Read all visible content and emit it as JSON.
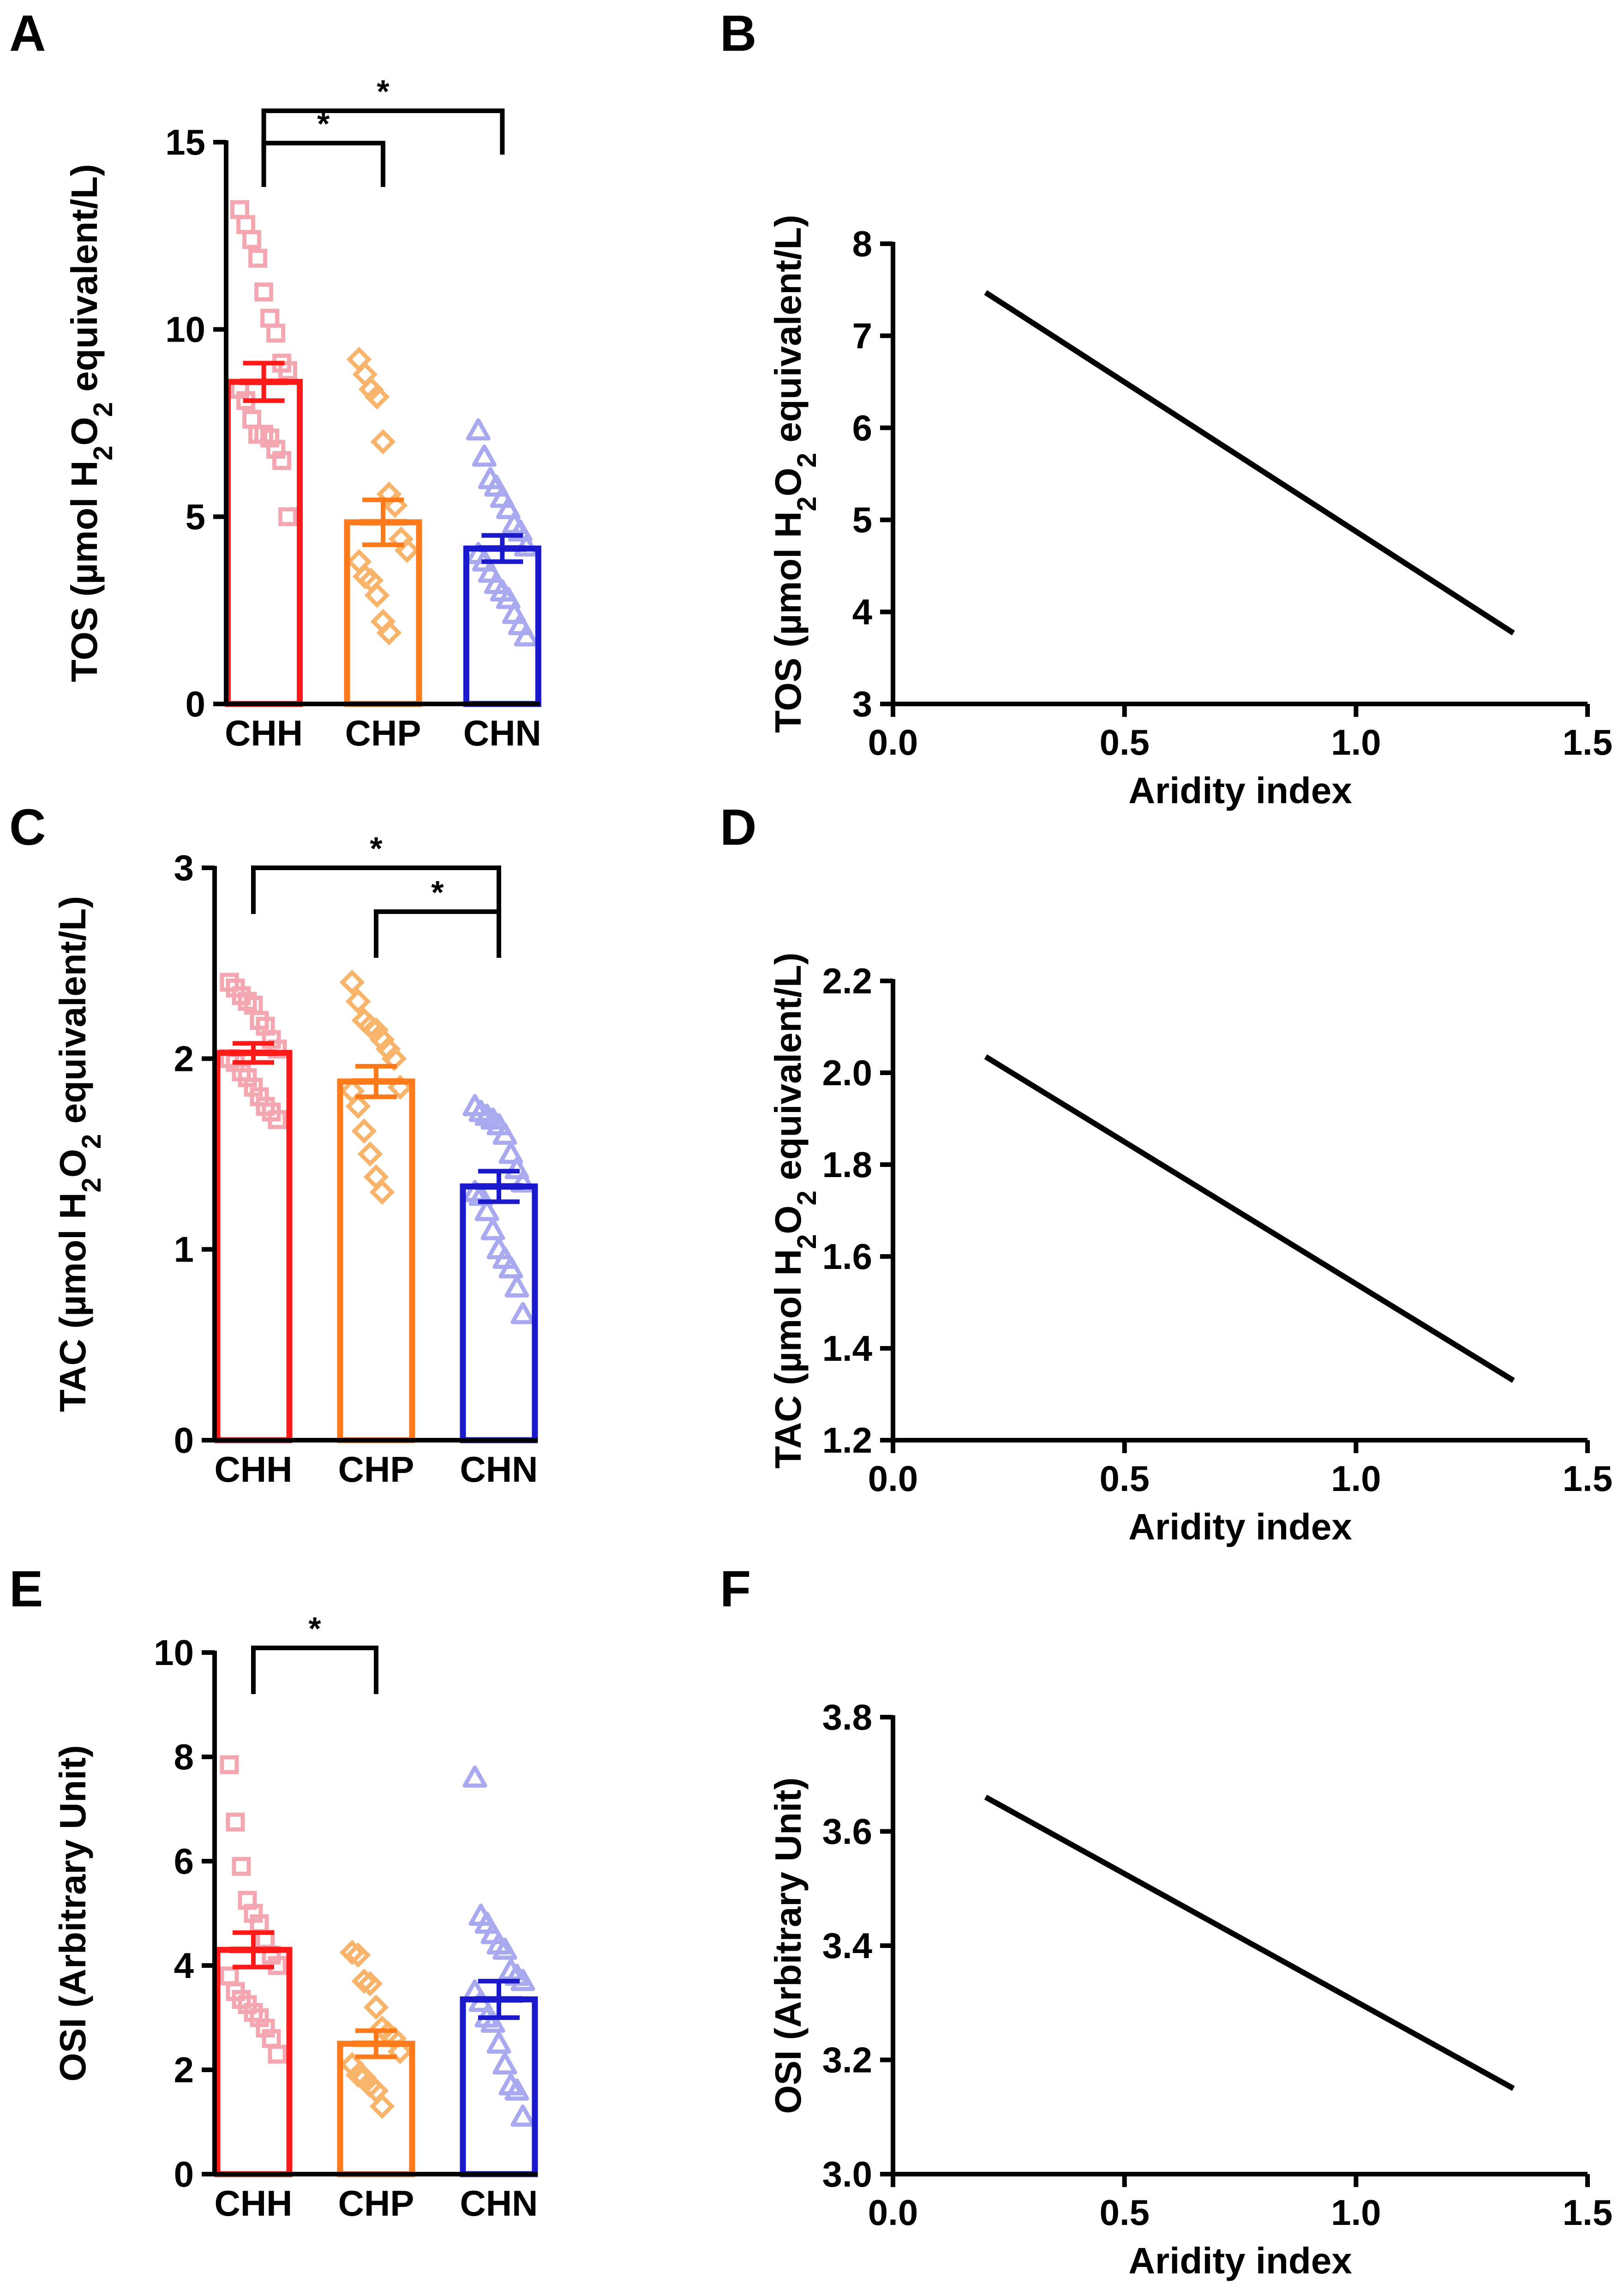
{
  "colors": {
    "CHH": "#ff1a1a",
    "CHH_light": "#f4a6b1",
    "CHP": "#ff7a1a",
    "CHP_light": "#f7b46a",
    "CHN": "#1a1acc",
    "CHN_light": "#a9a9f0",
    "line": "#000000"
  },
  "chart_data": [
    {
      "panel": "A",
      "type": "bar",
      "ylabel": "TOS (µmol H2O2 equivalent/L)",
      "ylabel_parts": {
        "pre": "TOS (µmol H",
        "sub1": "2",
        "mid": "O",
        "sub2": "2",
        "post": " equivalent/L)"
      },
      "ylim": [
        0,
        15
      ],
      "yticks": [
        "0",
        "5",
        "10",
        "15"
      ],
      "ytick_values": [
        0,
        5,
        10,
        15
      ],
      "categories": [
        "CHH",
        "CHP",
        "CHN"
      ],
      "means": [
        8.6,
        4.85,
        4.15
      ],
      "sem": [
        0.5,
        0.6,
        0.35
      ],
      "points": [
        [
          13.2,
          12.8,
          12.4,
          11.9,
          11.0,
          10.3,
          9.9,
          9.1,
          8.9,
          8.4,
          8.1,
          7.6,
          7.2,
          7.2,
          7.1,
          6.8,
          6.5,
          5.0
        ],
        [
          9.2,
          8.8,
          8.4,
          8.2,
          7.0,
          5.6,
          5.3,
          4.4,
          4.1,
          3.8,
          3.4,
          3.3,
          2.9,
          2.2,
          1.9
        ],
        [
          7.3,
          6.6,
          6.0,
          5.8,
          5.5,
          5.2,
          4.8,
          4.6,
          4.2,
          4.0,
          3.8,
          3.5,
          3.2,
          3.0,
          2.8,
          2.4,
          2.1,
          1.8
        ]
      ],
      "significance": [
        {
          "from": 0,
          "to": 1,
          "label": "*"
        },
        {
          "from": 0,
          "to": 2,
          "label": "*"
        }
      ]
    },
    {
      "panel": "B",
      "type": "line",
      "xlabel": "Aridity index",
      "ylabel": "TOS (µmol H2O2 equivalent/L)",
      "ylabel_parts": {
        "pre": "TOS (µmol H",
        "sub1": "2",
        "mid": "O",
        "sub2": "2",
        "post": " equivalent/L)"
      },
      "xlim": [
        0.0,
        1.5
      ],
      "ylim": [
        3,
        8
      ],
      "xticks": [
        "0.0",
        "0.5",
        "1.0",
        "1.5"
      ],
      "xtick_values": [
        0.0,
        0.5,
        1.0,
        1.5
      ],
      "yticks": [
        "3",
        "4",
        "5",
        "6",
        "7",
        "8"
      ],
      "ytick_values": [
        3,
        4,
        5,
        6,
        7,
        8
      ],
      "x": [
        0.2,
        1.34
      ],
      "y": [
        7.47,
        3.77
      ]
    },
    {
      "panel": "C",
      "type": "bar",
      "ylabel": "TAC (µmol H2O2 equivalent/L)",
      "ylabel_parts": {
        "pre": "TAC (µmol H",
        "sub1": "2",
        "mid": "O",
        "sub2": "2",
        "post": " equivalent/L)"
      },
      "ylim": [
        0,
        3
      ],
      "yticks": [
        "0",
        "1",
        "2",
        "3"
      ],
      "ytick_values": [
        0,
        1,
        2,
        3
      ],
      "categories": [
        "CHH",
        "CHP",
        "CHN"
      ],
      "means": [
        2.03,
        1.88,
        1.33
      ],
      "sem": [
        0.05,
        0.08,
        0.08
      ],
      "points": [
        [
          2.4,
          2.37,
          2.33,
          2.3,
          2.28,
          2.2,
          2.17,
          2.1,
          2.05,
          2.0,
          1.98,
          1.93,
          1.9,
          1.85,
          1.8,
          1.75,
          1.72,
          1.68
        ],
        [
          2.4,
          2.3,
          2.2,
          2.17,
          2.15,
          2.1,
          2.05,
          2.0,
          1.85,
          1.83,
          1.75,
          1.62,
          1.5,
          1.38,
          1.3
        ],
        [
          1.75,
          1.72,
          1.7,
          1.68,
          1.65,
          1.6,
          1.5,
          1.42,
          1.35,
          1.3,
          1.28,
          1.2,
          1.1,
          1.0,
          0.95,
          0.9,
          0.8,
          0.66
        ]
      ],
      "significance": [
        {
          "from": 0,
          "to": 2,
          "label": "*"
        },
        {
          "from": 1,
          "to": 2,
          "label": "*"
        }
      ]
    },
    {
      "panel": "D",
      "type": "line",
      "xlabel": "Aridity index",
      "ylabel": "TAC (µmol H2O2 equivalent/L)",
      "ylabel_parts": {
        "pre": "TAC (µmol H",
        "sub1": "2",
        "mid": "O",
        "sub2": "2",
        "post": " equivalent/L)"
      },
      "xlim": [
        0.0,
        1.5
      ],
      "ylim": [
        1.2,
        2.2
      ],
      "xticks": [
        "0.0",
        "0.5",
        "1.0",
        "1.5"
      ],
      "xtick_values": [
        0.0,
        0.5,
        1.0,
        1.5
      ],
      "yticks": [
        "1.2",
        "1.4",
        "1.6",
        "1.8",
        "2.0",
        "2.2"
      ],
      "ytick_values": [
        1.2,
        1.4,
        1.6,
        1.8,
        2.0,
        2.2
      ],
      "x": [
        0.2,
        1.34
      ],
      "y": [
        2.035,
        1.33
      ]
    },
    {
      "panel": "E",
      "type": "bar",
      "ylabel": "OSI (Arbitrary Unit)",
      "ylim": [
        0,
        10
      ],
      "yticks": [
        "0",
        "2",
        "4",
        "6",
        "8",
        "10"
      ],
      "ytick_values": [
        0,
        2,
        4,
        6,
        8,
        10
      ],
      "categories": [
        "CHH",
        "CHP",
        "CHN"
      ],
      "means": [
        4.3,
        2.5,
        3.35
      ],
      "sem": [
        0.33,
        0.25,
        0.35
      ],
      "points": [
        [
          7.85,
          6.75,
          5.9,
          5.25,
          5.0,
          4.8,
          4.5,
          4.2,
          4.0,
          3.8,
          3.5,
          3.35,
          3.25,
          3.1,
          3.0,
          2.8,
          2.6,
          2.3
        ],
        [
          4.25,
          4.2,
          3.7,
          3.65,
          3.2,
          2.8,
          2.7,
          2.6,
          2.35,
          2.1,
          1.9,
          1.85,
          1.7,
          1.6,
          1.3
        ],
        [
          7.6,
          4.95,
          4.8,
          4.6,
          4.4,
          4.3,
          3.9,
          3.8,
          3.7,
          3.5,
          3.3,
          3.0,
          2.9,
          2.5,
          2.1,
          1.7,
          1.6,
          1.1
        ]
      ],
      "significance": [
        {
          "from": 0,
          "to": 1,
          "label": "*"
        }
      ]
    },
    {
      "panel": "F",
      "type": "line",
      "xlabel": "Aridity index",
      "ylabel": "OSI (Arbitrary Unit)",
      "xlim": [
        0.0,
        1.5
      ],
      "ylim": [
        3.0,
        3.8
      ],
      "xticks": [
        "0.0",
        "0.5",
        "1.0",
        "1.5"
      ],
      "xtick_values": [
        0.0,
        0.5,
        1.0,
        1.5
      ],
      "yticks": [
        "3.0",
        "3.2",
        "3.4",
        "3.6",
        "3.8"
      ],
      "ytick_values": [
        3.0,
        3.2,
        3.4,
        3.6,
        3.8
      ],
      "x": [
        0.2,
        1.34
      ],
      "y": [
        3.66,
        3.15
      ]
    }
  ]
}
